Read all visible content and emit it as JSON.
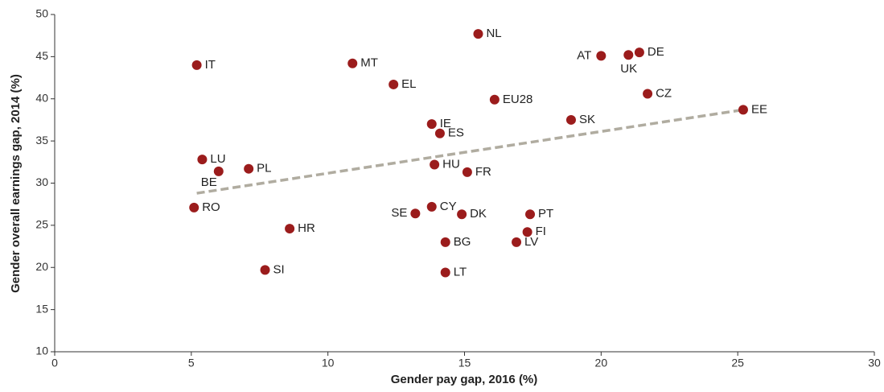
{
  "chart_data": {
    "type": "scatter",
    "xlabel": "Gender pay gap, 2016 (%)",
    "ylabel": "Gender overall earnings gap, 2014 (%)",
    "xlim": [
      0,
      30
    ],
    "xticks": [
      0,
      5,
      10,
      15,
      20,
      25,
      30
    ],
    "ylim": [
      10,
      50
    ],
    "yticks": [
      10,
      15,
      20,
      25,
      30,
      35,
      40,
      45,
      50
    ],
    "grid": false,
    "series": [
      {
        "color": "#9b1c1c",
        "labels": [
          "NL",
          "IT",
          "MT",
          "EL",
          "AT",
          "UK",
          "DE",
          "CZ",
          "EU28",
          "SK",
          "EE",
          "IE",
          "ES",
          "LU",
          "BE",
          "PL",
          "HU",
          "FR",
          "RO",
          "SE",
          "CY",
          "DK",
          "PT",
          "HR",
          "FI",
          "BG",
          "LV",
          "SI",
          "LT"
        ],
        "x": [
          15.5,
          5.2,
          10.9,
          12.4,
          20.0,
          21.0,
          21.4,
          21.7,
          16.1,
          18.9,
          25.2,
          13.8,
          14.1,
          5.4,
          6.0,
          7.1,
          13.9,
          15.1,
          5.1,
          13.2,
          13.8,
          14.9,
          17.4,
          8.6,
          17.3,
          14.3,
          16.9,
          7.7,
          14.3
        ],
        "values": [
          47.7,
          44.0,
          44.2,
          41.7,
          45.1,
          45.2,
          45.5,
          40.6,
          39.9,
          37.5,
          38.7,
          37.0,
          35.9,
          32.8,
          31.4,
          31.7,
          32.2,
          31.3,
          27.1,
          26.4,
          27.2,
          26.3,
          26.3,
          24.6,
          24.2,
          23.0,
          23.0,
          19.7,
          19.4
        ]
      }
    ],
    "trendline": {
      "color": "#b0aca0",
      "x": [
        5.2,
        25.2
      ],
      "values": [
        28.8,
        38.7
      ]
    }
  }
}
